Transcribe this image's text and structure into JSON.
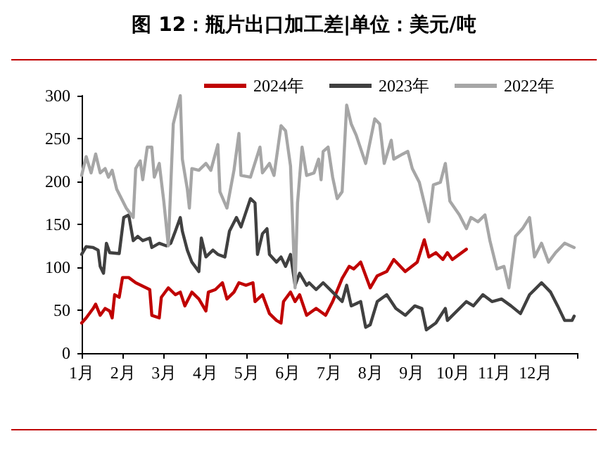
{
  "chart_data": {
    "type": "line",
    "title": "图 12：瓶片出口加工差|单位：美元/吨",
    "legend": "top",
    "grid": false,
    "marker": "none",
    "line_style": "solid",
    "xlim": [
      1,
      13
    ],
    "xticks": [
      {
        "value": 1,
        "label": "1月"
      },
      {
        "value": 2,
        "label": "2月"
      },
      {
        "value": 3,
        "label": "3月"
      },
      {
        "value": 4,
        "label": "4月"
      },
      {
        "value": 5,
        "label": "5月"
      },
      {
        "value": 6,
        "label": "6月"
      },
      {
        "value": 7,
        "label": "7月"
      },
      {
        "value": 8,
        "label": "8月"
      },
      {
        "value": 9,
        "label": "9月"
      },
      {
        "value": 10,
        "label": "10月"
      },
      {
        "value": 11,
        "label": "11月"
      },
      {
        "value": 12,
        "label": "12月"
      },
      {
        "value": 13,
        "label": null
      }
    ],
    "ylim": [
      0,
      300
    ],
    "yticks": [
      0,
      50,
      100,
      150,
      200,
      250,
      300
    ],
    "series": [
      {
        "name": "2024年",
        "color": "#c00000",
        "x": [
          1.0,
          1.11,
          1.28,
          1.34,
          1.45,
          1.57,
          1.68,
          1.74,
          1.8,
          1.91,
          1.99,
          2.14,
          2.31,
          2.65,
          2.7,
          2.88,
          2.93,
          3.1,
          3.27,
          3.39,
          3.5,
          3.67,
          3.84,
          4.01,
          4.07,
          4.24,
          4.41,
          4.52,
          4.69,
          4.81,
          4.98,
          5.15,
          5.2,
          5.38,
          5.55,
          5.72,
          5.83,
          5.89,
          6.06,
          6.17,
          6.28,
          6.45,
          6.68,
          6.91,
          7.08,
          7.31,
          7.48,
          7.59,
          7.76,
          7.99,
          8.16,
          8.39,
          8.56,
          8.84,
          9.13,
          9.3,
          9.41,
          9.58,
          9.75,
          9.86,
          9.98,
          10.32
        ],
        "values": [
          35,
          41,
          52,
          57,
          44,
          52,
          49,
          41,
          68,
          65,
          88,
          88,
          82,
          74,
          44,
          41,
          65,
          76,
          68,
          71,
          55,
          71,
          63,
          49,
          71,
          74,
          82,
          63,
          71,
          82,
          79,
          82,
          60,
          68,
          46,
          38,
          35,
          60,
          71,
          60,
          68,
          44,
          52,
          44,
          60,
          87,
          101,
          98,
          106,
          76,
          90,
          95,
          109,
          95,
          106,
          132,
          112,
          117,
          109,
          117,
          109,
          121
        ]
      },
      {
        "name": "2023年",
        "color": "#404040",
        "x": [
          1.0,
          1.11,
          1.28,
          1.4,
          1.45,
          1.53,
          1.6,
          1.68,
          1.91,
          2.02,
          2.14,
          2.25,
          2.36,
          2.48,
          2.65,
          2.7,
          2.88,
          3.05,
          3.16,
          3.27,
          3.39,
          3.44,
          3.56,
          3.67,
          3.84,
          3.9,
          4.01,
          4.18,
          4.3,
          4.47,
          4.58,
          4.75,
          4.86,
          5.09,
          5.2,
          5.26,
          5.38,
          5.49,
          5.55,
          5.72,
          5.83,
          5.94,
          6.06,
          6.17,
          6.28,
          6.45,
          6.51,
          6.68,
          6.85,
          7.08,
          7.31,
          7.42,
          7.53,
          7.76,
          7.88,
          7.99,
          8.16,
          8.39,
          8.61,
          8.84,
          9.07,
          9.24,
          9.35,
          9.58,
          9.81,
          9.86,
          10.32,
          10.49,
          10.72,
          10.94,
          11.17,
          11.4,
          11.63,
          11.85,
          12.14,
          12.36,
          12.53,
          12.7,
          12.88,
          12.93
        ],
        "values": [
          115,
          124,
          123,
          120,
          101,
          93,
          128,
          117,
          116,
          158,
          161,
          131,
          136,
          131,
          134,
          123,
          128,
          125,
          128,
          142,
          158,
          142,
          120,
          106,
          95,
          134,
          112,
          120,
          115,
          112,
          142,
          158,
          147,
          180,
          175,
          115,
          139,
          145,
          115,
          106,
          112,
          101,
          115,
          79,
          93,
          79,
          82,
          74,
          82,
          71,
          60,
          79,
          55,
          60,
          30,
          33,
          60,
          68,
          52,
          44,
          55,
          52,
          27,
          35,
          52,
          38,
          60,
          55,
          68,
          60,
          63,
          55,
          46,
          68,
          82,
          71,
          55,
          38,
          38,
          43
        ]
      },
      {
        "name": "2022年",
        "color": "#a6a6a6",
        "x": [
          1.0,
          1.11,
          1.23,
          1.34,
          1.45,
          1.57,
          1.65,
          1.74,
          1.85,
          2.08,
          2.25,
          2.31,
          2.42,
          2.48,
          2.59,
          2.7,
          2.76,
          2.88,
          2.99,
          3.1,
          3.22,
          3.39,
          3.44,
          3.56,
          3.61,
          3.67,
          3.84,
          4.01,
          4.13,
          4.3,
          4.35,
          4.52,
          4.69,
          4.81,
          4.86,
          5.09,
          5.32,
          5.38,
          5.55,
          5.66,
          5.83,
          5.94,
          6.06,
          6.17,
          6.23,
          6.34,
          6.45,
          6.63,
          6.74,
          6.8,
          6.85,
          6.97,
          7.08,
          7.19,
          7.31,
          7.42,
          7.53,
          7.65,
          7.88,
          8.1,
          8.22,
          8.33,
          8.5,
          8.56,
          8.78,
          8.9,
          9.01,
          9.18,
          9.41,
          9.52,
          9.69,
          9.81,
          9.92,
          10.15,
          10.32,
          10.43,
          10.6,
          10.77,
          10.89,
          11.06,
          11.23,
          11.35,
          11.51,
          11.68,
          11.85,
          11.97,
          12.14,
          12.31,
          12.48,
          12.7,
          12.93
        ],
        "values": [
          207,
          229,
          210,
          232,
          210,
          215,
          205,
          213,
          191,
          169,
          158,
          215,
          224,
          202,
          240,
          240,
          205,
          221,
          177,
          125,
          267,
          300,
          226,
          191,
          169,
          215,
          213,
          221,
          213,
          243,
          188,
          169,
          213,
          256,
          207,
          205,
          240,
          210,
          221,
          207,
          265,
          259,
          218,
          76,
          175,
          240,
          207,
          210,
          226,
          202,
          235,
          240,
          205,
          180,
          188,
          289,
          267,
          254,
          221,
          273,
          267,
          221,
          248,
          226,
          232,
          235,
          215,
          199,
          153,
          196,
          199,
          221,
          177,
          161,
          145,
          158,
          153,
          161,
          131,
          98,
          101,
          76,
          136,
          145,
          158,
          112,
          128,
          106,
          117,
          128,
          123
        ]
      }
    ]
  }
}
